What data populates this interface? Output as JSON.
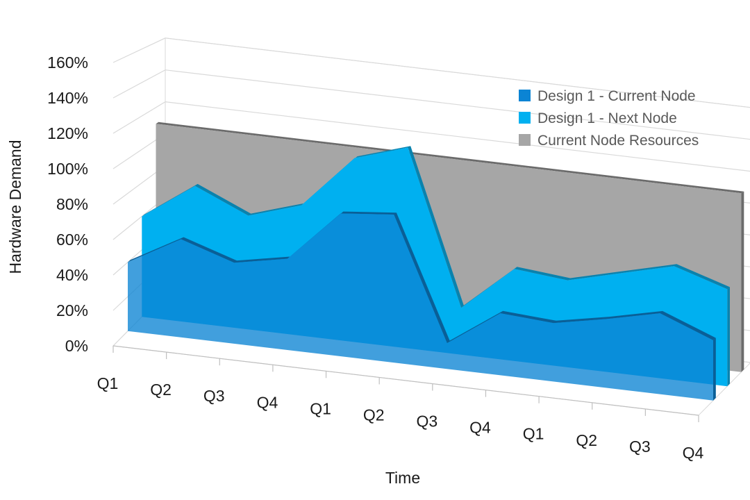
{
  "chart_data": {
    "type": "area",
    "subtype": "3d-area",
    "xlabel": "Time",
    "ylabel": "Hardware Demand",
    "categories": [
      "Q1",
      "Q2",
      "Q3",
      "Q4",
      "Q1",
      "Q2",
      "Q3",
      "Q4",
      "Q1",
      "Q2",
      "Q3",
      "Q4"
    ],
    "y_ticks": [
      "0%",
      "20%",
      "40%",
      "60%",
      "80%",
      "100%",
      "120%",
      "140%",
      "160%"
    ],
    "ylim": [
      0,
      160
    ],
    "grid": true,
    "legend_position": "right",
    "series": [
      {
        "name": "Current Node Resources",
        "color": "#a6a6a6",
        "values": [
          110,
          110,
          110,
          110,
          110,
          110,
          110,
          110,
          110,
          110,
          110,
          110
        ]
      },
      {
        "name": "Design 1 - Next Node",
        "color": "#00b0f0",
        "values": [
          60,
          82,
          68,
          78,
          110,
          120,
          28,
          55,
          52,
          60,
          68,
          58
        ]
      },
      {
        "name": "Design 1 - Current Node",
        "color": "#0b84d4",
        "values": [
          40,
          57,
          47,
          53,
          83,
          86,
          15,
          36,
          34,
          40,
          47,
          35
        ]
      }
    ],
    "legend": [
      "Design 1 - Current Node",
      "Design 1 - Next Node",
      "Current Node Resources"
    ]
  }
}
